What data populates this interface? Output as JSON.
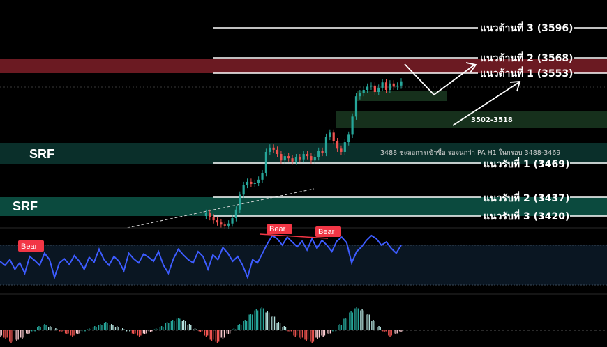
{
  "colors": {
    "background": "#000000",
    "resistance_zone": "#6b1a22",
    "support_zone": "#0b4a3e",
    "support_zone_dark": "#0a2f2a",
    "green_zone": "#16301c",
    "candle_up": "#26a69a",
    "candle_down": "#ef5350",
    "rsi_line": "#3d5cff",
    "bear_badge": "#f23645",
    "level_line": "#ffffff"
  },
  "levels": {
    "r3": "แนวต้านที่ 3 (3596)",
    "r2": "แนวต้านที่ 2 (3568)",
    "r1": "แนวต้านที่ 1 (3553)",
    "s1": "แนวรับที่ 1 (3469)",
    "s2": "แนวรับที่ 2 (3437)",
    "s3": "แนวรับที่ 3 (3420)"
  },
  "zones": {
    "srf_upper": "SRF",
    "srf_lower": "SRF",
    "green_zone_label": "3502-3518"
  },
  "annotation": "3488 ชะลอการเข้าซื้อ รอจนกว่า PA H1 ในกรอบ 3488-3469",
  "oscillator": {
    "bear_labels": [
      "Bear",
      "Bear",
      "Bear"
    ]
  },
  "chart_data": {
    "type": "line",
    "price_levels": [
      3596,
      3568,
      3553,
      3518,
      3502,
      3488,
      3469,
      3437,
      3420
    ],
    "candles": {
      "start_x": 290,
      "end_x": 575,
      "close": [
        3420,
        3423,
        3419,
        3416,
        3414,
        3412,
        3411,
        3413,
        3418,
        3426,
        3440,
        3449,
        3452,
        3450,
        3451,
        3454,
        3460,
        3480,
        3484,
        3482,
        3478,
        3472,
        3476,
        3474,
        3471,
        3475,
        3473,
        3478,
        3476,
        3472,
        3475,
        3481,
        3479,
        3494,
        3498,
        3490,
        3483,
        3480,
        3489,
        3496,
        3513,
        3532,
        3535,
        3538,
        3541,
        3542,
        3536,
        3540,
        3545,
        3538,
        3544,
        3541,
        3542,
        3546
      ]
    },
    "rsi": [
      60,
      55,
      62,
      50,
      58,
      45,
      66,
      61,
      55,
      70,
      62,
      40,
      58,
      63,
      56,
      67,
      60,
      50,
      65,
      59,
      75,
      62,
      55,
      66,
      60,
      48,
      70,
      63,
      58,
      69,
      65,
      60,
      72,
      55,
      45,
      63,
      75,
      68,
      62,
      58,
      72,
      66,
      50,
      68,
      62,
      77,
      70,
      60,
      66,
      55,
      40,
      62,
      58,
      70,
      82,
      92,
      88,
      80,
      90,
      84,
      78,
      85,
      74,
      88,
      76,
      86,
      80,
      72,
      85,
      90,
      83,
      58,
      72,
      78,
      86,
      92,
      88,
      80,
      84,
      76,
      70,
      80
    ],
    "histogram": [
      -3,
      -4,
      -6,
      -5,
      -4,
      -2,
      0,
      2,
      3,
      2,
      1,
      -1,
      -2,
      -3,
      -2,
      0,
      1,
      2,
      3,
      4,
      3,
      2,
      1,
      0,
      -2,
      -3,
      -2,
      -1,
      1,
      2,
      4,
      5,
      6,
      5,
      3,
      1,
      -1,
      -3,
      -5,
      -6,
      -4,
      -2,
      1,
      3,
      5,
      8,
      10,
      11,
      9,
      7,
      4,
      2,
      -1,
      -3,
      -4,
      -5,
      -6,
      -4,
      -3,
      -2,
      0,
      3,
      6,
      9,
      11,
      10,
      8,
      5,
      2,
      -1,
      -3,
      -2,
      -1
    ],
    "ylim": [
      3400,
      3600
    ]
  }
}
